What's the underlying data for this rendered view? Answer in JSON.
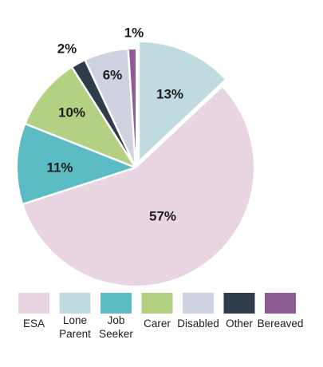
{
  "chart_data": {
    "type": "pie",
    "title": "",
    "slices": [
      {
        "label": "ESA",
        "legend_lines": [
          "ESA"
        ],
        "value": 57,
        "display": "57%",
        "color": "#e9d4e2",
        "exploded": false
      },
      {
        "label": "Lone Parent",
        "legend_lines": [
          "Lone",
          "Parent"
        ],
        "value": 13,
        "display": "13%",
        "color": "#bfdbe0",
        "exploded": true
      },
      {
        "label": "Job Seeker",
        "legend_lines": [
          "Job",
          "Seeker"
        ],
        "value": 11,
        "display": "11%",
        "color": "#5cbcc4",
        "exploded": false
      },
      {
        "label": "Carer",
        "legend_lines": [
          "Carer"
        ],
        "value": 10,
        "display": "10%",
        "color": "#b3d083",
        "exploded": false
      },
      {
        "label": "Disabled",
        "legend_lines": [
          "Disabled"
        ],
        "value": 6,
        "display": "6%",
        "color": "#cfd2e1",
        "exploded": false
      },
      {
        "label": "Other",
        "legend_lines": [
          "Other"
        ],
        "value": 2,
        "display": "2%",
        "color": "#2f3c4c",
        "exploded": false
      },
      {
        "label": "Bereaved",
        "legend_lines": [
          "Bereaved"
        ],
        "value": 1,
        "display": "1%",
        "color": "#8e5b95",
        "exploded": false
      }
    ],
    "start_angle_deg": 0,
    "direction": "clockwise_from_top",
    "legend_order": [
      "ESA",
      "Lone Parent",
      "Job Seeker",
      "Carer",
      "Disabled",
      "Other",
      "Bereaved"
    ],
    "legend_placement": "bottom"
  }
}
